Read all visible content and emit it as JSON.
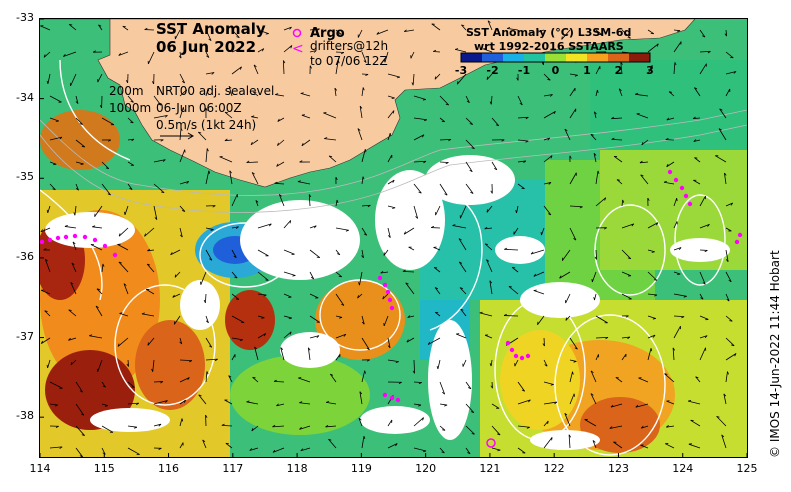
{
  "title": {
    "line1": "SST Anomaly",
    "line2": "06 Jun 2022"
  },
  "legend": {
    "argo_label": "Argo",
    "drifters_label": "drifters@12h",
    "drifters_until": "to 07/06 12Z",
    "argo_symbol": "o",
    "drifter_symbol": "<",
    "symbol_color": "#ff00ff"
  },
  "info": {
    "contour_200": "200m",
    "contour_1000": "1000m",
    "sealevel_source": "NRT00 adj. sealevel",
    "sealevel_time": "06-Jun 06:00Z",
    "vector_scale": "0.5m/s (1kt 24h)"
  },
  "colorbar": {
    "title_line1": "SST Anomaly (°C) L3SM-6d",
    "title_line2": "wrt 1992-2016 SSTAARS",
    "ticks": [
      "-3",
      "-2",
      "-1",
      "0",
      "1",
      "2",
      "3"
    ],
    "colors": [
      "#0a1a8c",
      "#1f5fd9",
      "#19b0e6",
      "#22c3a0",
      "#9be035",
      "#f2e422",
      "#f7a21e",
      "#d9641a",
      "#8b1c0c"
    ]
  },
  "axes": {
    "x_ticks": [
      "114",
      "115",
      "116",
      "117",
      "118",
      "119",
      "120",
      "121",
      "122",
      "123",
      "124",
      "125"
    ],
    "y_ticks": [
      "-33",
      "-34",
      "-35",
      "-36",
      "-37",
      "-38"
    ],
    "xlim": [
      114,
      125
    ],
    "ylim": [
      -38.5,
      -33
    ]
  },
  "colors": {
    "land": "#f7caa0",
    "cloud": "#ffffff"
  },
  "copyright": "© IMOS 14-Jun-2022 11:44 Hobart"
}
